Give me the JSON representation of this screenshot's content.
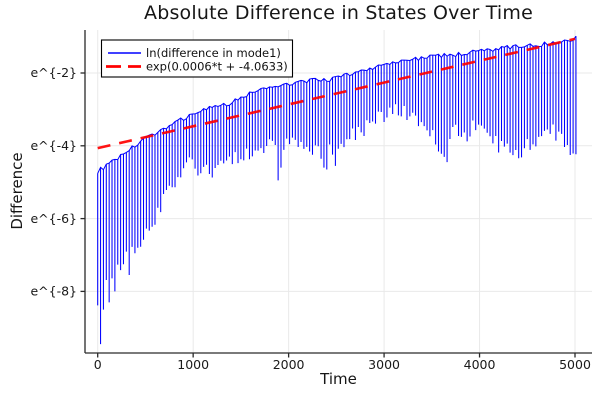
{
  "chart_data": {
    "type": "line",
    "title": "Absolute Difference in States Over Time",
    "xlabel": "Time",
    "ylabel": "Difference",
    "x_ticks": [
      0,
      1000,
      2000,
      3000,
      4000,
      5000
    ],
    "x_tick_labels": [
      "0",
      "1000",
      "2000",
      "3000",
      "4000",
      "5000"
    ],
    "y_ticks_ln": [
      -2,
      -4,
      -6,
      -8
    ],
    "y_tick_labels": [
      "e^{-2}",
      "e^{-4}",
      "e^{-6}",
      "e^{-8}"
    ],
    "xlim": [
      -135,
      5180
    ],
    "ylim_ln": [
      -9.7,
      -0.82
    ],
    "y_scale": "log-e",
    "grid": true,
    "grid_color": "#e9e9e9",
    "axis_color": "#2a2a2a",
    "legend_position": "top-left",
    "series": [
      {
        "name": "ln(difference in mode1)",
        "color": "#0000ff",
        "style": "solid",
        "kind": "oscillatory-band",
        "samples_dt": 30,
        "t_range": [
          0,
          5000
        ],
        "top_envelope_ln": [
          [
            0,
            -4.7
          ],
          [
            150,
            -4.45
          ],
          [
            300,
            -4.15
          ],
          [
            450,
            -3.9
          ],
          [
            600,
            -3.65
          ],
          [
            750,
            -3.45
          ],
          [
            900,
            -3.25
          ],
          [
            1050,
            -3.05
          ],
          [
            1200,
            -2.95
          ],
          [
            1350,
            -2.87
          ],
          [
            1500,
            -2.67
          ],
          [
            1650,
            -2.5
          ],
          [
            1800,
            -2.4
          ],
          [
            1950,
            -2.3
          ],
          [
            2100,
            -2.26
          ],
          [
            2250,
            -2.2
          ],
          [
            2400,
            -2.2
          ],
          [
            2550,
            -2.1
          ],
          [
            2700,
            -1.98
          ],
          [
            2850,
            -1.88
          ],
          [
            3000,
            -1.78
          ],
          [
            3150,
            -1.7
          ],
          [
            3300,
            -1.62
          ],
          [
            3450,
            -1.56
          ],
          [
            3600,
            -1.52
          ],
          [
            3750,
            -1.5
          ],
          [
            3900,
            -1.44
          ],
          [
            4050,
            -1.39
          ],
          [
            4200,
            -1.33
          ],
          [
            4350,
            -1.28
          ],
          [
            4500,
            -1.24
          ],
          [
            4650,
            -1.21
          ],
          [
            4800,
            -1.16
          ],
          [
            4900,
            -1.12
          ],
          [
            5000,
            -1.03
          ]
        ],
        "bottom_envelope_ln": [
          [
            0,
            -8.2
          ],
          [
            150,
            -7.7
          ],
          [
            250,
            -7.2
          ],
          [
            350,
            -6.85
          ],
          [
            450,
            -6.6
          ],
          [
            550,
            -6.25
          ],
          [
            650,
            -5.7
          ],
          [
            750,
            -5.25
          ],
          [
            850,
            -4.8
          ],
          [
            950,
            -4.45
          ],
          [
            1050,
            -4.6
          ],
          [
            1175,
            -4.75
          ],
          [
            1335,
            -4.5
          ],
          [
            1440,
            -4.3
          ],
          [
            1600,
            -4.15
          ],
          [
            1750,
            -4.0
          ],
          [
            1910,
            -3.95
          ],
          [
            2010,
            -3.85
          ],
          [
            2115,
            -4.0
          ],
          [
            2220,
            -4.15
          ],
          [
            2320,
            -4.15
          ],
          [
            2430,
            -4.1
          ],
          [
            2540,
            -4.2
          ],
          [
            2640,
            -3.8
          ],
          [
            2850,
            -3.4
          ],
          [
            3060,
            -3.05
          ],
          [
            3270,
            -3.1
          ],
          [
            3480,
            -3.6
          ],
          [
            3620,
            -4.2
          ],
          [
            3720,
            -3.5
          ],
          [
            3850,
            -3.75
          ],
          [
            3950,
            -3.4
          ],
          [
            4100,
            -3.8
          ],
          [
            4285,
            -4.15
          ],
          [
            4390,
            -4.25
          ],
          [
            4495,
            -3.95
          ],
          [
            4600,
            -3.85
          ],
          [
            4705,
            -3.6
          ],
          [
            4810,
            -3.65
          ],
          [
            4915,
            -3.9
          ],
          [
            5000,
            -4.3
          ]
        ],
        "deep_spikes_ln": [
          [
            30,
            -9.45
          ],
          [
            60,
            -8.5
          ],
          [
            120,
            -8.3
          ],
          [
            180,
            -8.0
          ],
          [
            330,
            -7.55
          ],
          [
            1890,
            -4.95
          ],
          [
            1920,
            -4.6
          ],
          [
            2370,
            -4.6
          ],
          [
            2400,
            -4.65
          ],
          [
            2490,
            -4.55
          ],
          [
            3660,
            -4.45
          ]
        ]
      },
      {
        "name": "exp(0.0006*t + -4.0633)",
        "color": "#ff0000",
        "style": "dashed",
        "kind": "exponential-fit",
        "slope": 0.0006,
        "intercept": -4.0633,
        "t_range": [
          0,
          5000
        ]
      }
    ]
  }
}
